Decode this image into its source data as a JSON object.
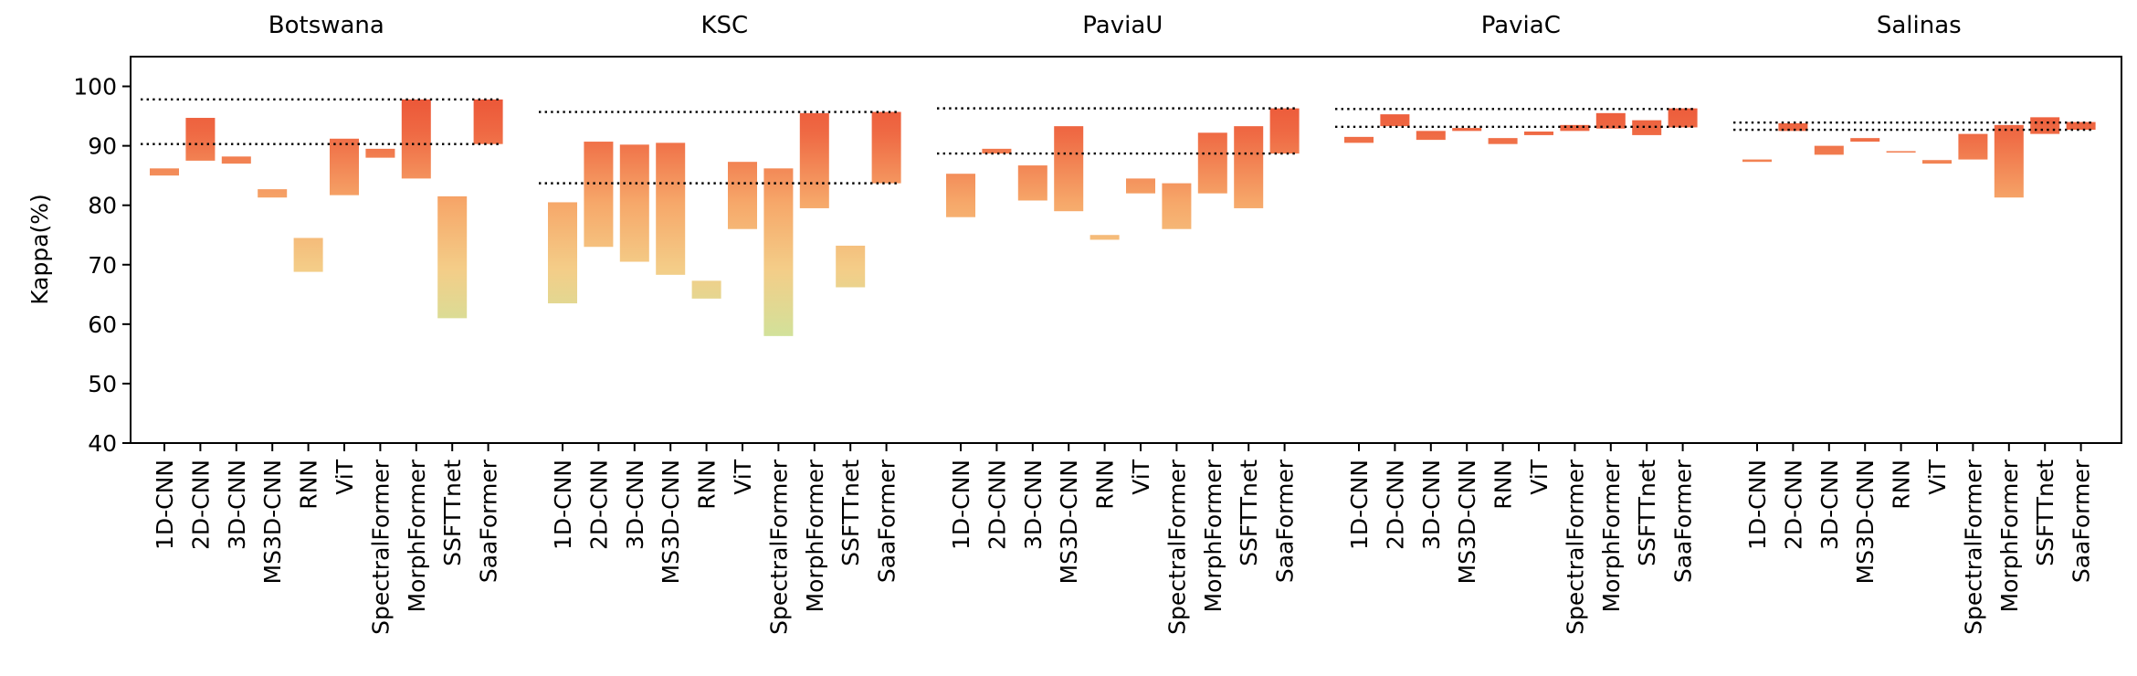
{
  "chart_data": {
    "type": "floating-bar",
    "ylabel": "Kappa(%)",
    "ylim": [
      40,
      105
    ],
    "yticks": [
      40,
      50,
      60,
      70,
      80,
      90,
      100
    ],
    "methods": [
      "1D-CNN",
      "2D-CNN",
      "3D-CNN",
      "MS3D-CNN",
      "RNN",
      "ViT",
      "SpectralFormer",
      "MorphFormer",
      "SSFTTnet",
      "SaaFormer"
    ],
    "groups": [
      {
        "name": "Botswana",
        "ranges": [
          [
            85.0,
            86.2
          ],
          [
            87.5,
            94.7
          ],
          [
            87.0,
            88.2
          ],
          [
            81.3,
            82.7
          ],
          [
            68.8,
            74.5
          ],
          [
            81.7,
            91.2
          ],
          [
            88.0,
            89.5
          ],
          [
            84.5,
            97.8
          ],
          [
            61.0,
            81.5
          ],
          [
            90.3,
            97.8
          ]
        ],
        "reference_lines": [
          97.8,
          90.3
        ]
      },
      {
        "name": "KSC",
        "ranges": [
          [
            63.5,
            80.5
          ],
          [
            73.0,
            90.7
          ],
          [
            70.5,
            90.2
          ],
          [
            68.3,
            90.5
          ],
          [
            64.3,
            67.3
          ],
          [
            76.0,
            87.3
          ],
          [
            58.0,
            86.2
          ],
          [
            79.5,
            95.5
          ],
          [
            66.2,
            73.2
          ],
          [
            83.7,
            95.7
          ]
        ],
        "reference_lines": [
          95.7,
          83.7
        ]
      },
      {
        "name": "PaviaU",
        "ranges": [
          [
            78.0,
            85.3
          ],
          [
            88.7,
            89.5
          ],
          [
            80.8,
            86.7
          ],
          [
            79.0,
            93.3
          ],
          [
            74.2,
            75.0
          ],
          [
            82.0,
            84.5
          ],
          [
            76.0,
            83.7
          ],
          [
            82.0,
            92.2
          ],
          [
            79.5,
            93.3
          ],
          [
            88.7,
            96.3
          ]
        ],
        "reference_lines": [
          96.3,
          88.7
        ]
      },
      {
        "name": "PaviaC",
        "ranges": [
          [
            90.5,
            91.5
          ],
          [
            93.3,
            95.3
          ],
          [
            91.0,
            92.5
          ],
          [
            92.5,
            93.0
          ],
          [
            90.3,
            91.3
          ],
          [
            91.8,
            92.4
          ],
          [
            92.5,
            93.5
          ],
          [
            92.9,
            95.5
          ],
          [
            91.8,
            94.3
          ],
          [
            93.1,
            96.3
          ]
        ],
        "reference_lines": [
          96.2,
          93.2
        ]
      },
      {
        "name": "Salinas",
        "ranges": [
          [
            87.3,
            87.7
          ],
          [
            92.5,
            93.8
          ],
          [
            88.5,
            90.0
          ],
          [
            90.7,
            91.3
          ],
          [
            88.9,
            89.1
          ],
          [
            87.0,
            87.6
          ],
          [
            87.7,
            92.0
          ],
          [
            81.3,
            93.5
          ],
          [
            92.0,
            94.8
          ],
          [
            92.7,
            94.0
          ]
        ],
        "reference_lines": [
          93.9,
          92.7
        ]
      }
    ],
    "colormap": {
      "low": "#c7e8a0",
      "mid": "#f6b26b",
      "high": "#e8412a"
    }
  }
}
